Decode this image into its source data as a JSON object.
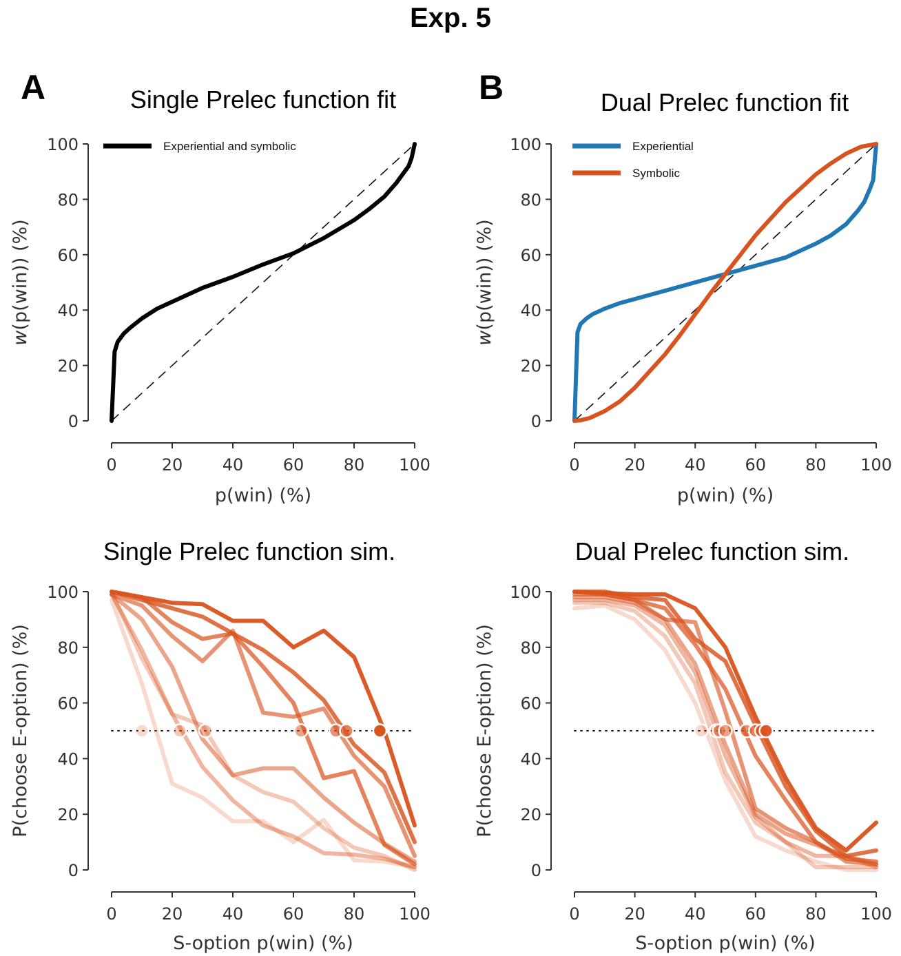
{
  "figure_title": "Exp. 5",
  "panels": {
    "A": {
      "letter": "A",
      "title": "Single Prelec function fit"
    },
    "B": {
      "letter": "B",
      "title": "Dual Prelec function fit"
    },
    "C": {
      "title": "Single Prelec function sim."
    },
    "D": {
      "title": "Dual Prelec function sim."
    }
  },
  "colors": {
    "black": "#000000",
    "blue": "#1f77b4",
    "orange": "#d9531e"
  },
  "chart_data": [
    {
      "id": "A",
      "type": "line",
      "title": "Single Prelec function fit",
      "xlabel": "p(win) (%)",
      "ylabel_italic": "w",
      "ylabel_rest": "(p(win)) (%)",
      "xlim": [
        0,
        100
      ],
      "ylim": [
        0,
        100
      ],
      "xticks": [
        0,
        20,
        40,
        60,
        80,
        100
      ],
      "yticks": [
        0,
        20,
        40,
        60,
        80,
        100
      ],
      "grid": false,
      "legend": "top-left",
      "identity_line": true,
      "series": [
        {
          "name": "Experiential and symbolic",
          "color": "#000000",
          "x": [
            0,
            1,
            2,
            4,
            6,
            10,
            15,
            20,
            30,
            40,
            50,
            60,
            70,
            80,
            85,
            90,
            94,
            96,
            98,
            99,
            100
          ],
          "y": [
            0,
            25,
            28.5,
            31.5,
            33.5,
            37,
            40.5,
            43,
            48,
            52,
            56.5,
            60.5,
            66,
            72.5,
            76.5,
            81,
            86,
            89,
            92,
            95,
            100
          ]
        }
      ]
    },
    {
      "id": "B",
      "type": "line",
      "title": "Dual Prelec function fit",
      "xlabel": "p(win) (%)",
      "ylabel_italic": "w",
      "ylabel_rest": "(p(win)) (%)",
      "xlim": [
        0,
        100
      ],
      "ylim": [
        0,
        100
      ],
      "xticks": [
        0,
        20,
        40,
        60,
        80,
        100
      ],
      "yticks": [
        0,
        20,
        40,
        60,
        80,
        100
      ],
      "grid": false,
      "legend": "top-left",
      "identity_line": true,
      "series": [
        {
          "name": "Experiential",
          "color": "#1f77b4",
          "x": [
            0,
            1,
            2,
            4,
            6,
            10,
            15,
            20,
            30,
            40,
            50,
            60,
            70,
            80,
            85,
            90,
            94,
            96,
            98,
            99,
            100
          ],
          "y": [
            0,
            32,
            35,
            37,
            38.5,
            40.5,
            42.5,
            44,
            47,
            50,
            53,
            56,
            59,
            64,
            67,
            71,
            76,
            79,
            84,
            87,
            100
          ]
        },
        {
          "name": "Symbolic",
          "color": "#d9531e",
          "x": [
            0,
            2,
            5,
            10,
            15,
            20,
            25,
            30,
            35,
            40,
            45,
            50,
            55,
            60,
            65,
            70,
            75,
            80,
            85,
            90,
            95,
            100
          ],
          "y": [
            0,
            0.2,
            1,
            3.5,
            7,
            12,
            18,
            24,
            31,
            38.5,
            46,
            53,
            60,
            67,
            73,
            79,
            84,
            89,
            93,
            96.5,
            99,
            100
          ]
        }
      ]
    },
    {
      "id": "C",
      "type": "line",
      "title": "Single Prelec function sim.",
      "xlabel": "S-option p(win) (%)",
      "ylabel": "P(choose E-option) (%)",
      "xlim": [
        0,
        100
      ],
      "ylim": [
        0,
        100
      ],
      "xticks": [
        0,
        20,
        40,
        60,
        80,
        100
      ],
      "yticks": [
        0,
        20,
        40,
        60,
        80,
        100
      ],
      "grid": false,
      "reference_line_y": 50,
      "x": [
        0,
        10,
        20,
        30,
        40,
        50,
        60,
        70,
        80,
        90,
        100
      ],
      "series": [
        {
          "opacity": 0.22,
          "indifference_x": 10,
          "values": [
            97,
            67,
            31,
            26,
            17.5,
            17.5,
            10,
            18,
            3.5,
            3,
            1
          ]
        },
        {
          "opacity": 0.32,
          "indifference_x": 22.5,
          "values": [
            100,
            76,
            56,
            52,
            34,
            28,
            24.5,
            15,
            8,
            5,
            0
          ]
        },
        {
          "opacity": 0.42,
          "indifference_x": 31,
          "values": [
            99,
            79,
            56,
            37,
            25,
            16,
            12,
            6,
            5.5,
            4,
            1
          ]
        },
        {
          "opacity": 0.52,
          "indifference_x": 62.5,
          "values": [
            99,
            90,
            73,
            47,
            34,
            36.5,
            36.5,
            26,
            17,
            9.5,
            3
          ]
        },
        {
          "opacity": 0.62,
          "indifference_x": 74,
          "values": [
            99,
            95,
            84,
            75,
            86,
            56.5,
            55,
            58,
            41,
            30,
            5
          ]
        },
        {
          "opacity": 0.72,
          "indifference_x": 77.5,
          "values": [
            100,
            98,
            89,
            83,
            85,
            73,
            60,
            33,
            35.5,
            9,
            2
          ]
        },
        {
          "opacity": 0.82,
          "indifference_x": 88.5,
          "values": [
            100,
            97,
            94,
            91,
            85,
            79,
            71,
            61,
            45,
            35,
            10
          ]
        },
        {
          "opacity": 0.95,
          "indifference_x": 88.5,
          "values": [
            100,
            98,
            96,
            95.5,
            89.5,
            89.5,
            80,
            86,
            76.5,
            50,
            16
          ]
        }
      ]
    },
    {
      "id": "D",
      "type": "line",
      "title": "Dual Prelec function sim.",
      "xlabel": "S-option p(win) (%)",
      "ylabel": "P(choose E-option) (%)",
      "xlim": [
        0,
        100
      ],
      "ylim": [
        0,
        100
      ],
      "xticks": [
        0,
        20,
        40,
        60,
        80,
        100
      ],
      "yticks": [
        0,
        20,
        40,
        60,
        80,
        100
      ],
      "grid": false,
      "reference_line_y": 50,
      "x": [
        0,
        10,
        20,
        30,
        40,
        50,
        60,
        70,
        80,
        90,
        100
      ],
      "series": [
        {
          "opacity": 0.22,
          "indifference_x": 42,
          "values": [
            94,
            95,
            90,
            79,
            60,
            32,
            12,
            7,
            3,
            0,
            0
          ]
        },
        {
          "opacity": 0.32,
          "indifference_x": 47,
          "values": [
            96,
            96,
            93,
            84,
            67,
            35,
            17,
            10,
            1,
            1,
            1
          ]
        },
        {
          "opacity": 0.42,
          "indifference_x": 48,
          "values": [
            97,
            97,
            95,
            88,
            71,
            41,
            19,
            10,
            5,
            5,
            1
          ]
        },
        {
          "opacity": 0.52,
          "indifference_x": 50,
          "values": [
            98,
            98,
            96,
            90,
            74,
            45,
            20,
            13,
            9,
            5,
            2
          ]
        },
        {
          "opacity": 0.62,
          "indifference_x": 57,
          "values": [
            99,
            99,
            97,
            90,
            89,
            57,
            22,
            15,
            10,
            3,
            2
          ]
        },
        {
          "opacity": 0.72,
          "indifference_x": 60,
          "values": [
            100,
            99,
            97,
            94,
            81,
            65,
            41,
            25,
            10,
            4,
            3
          ]
        },
        {
          "opacity": 0.82,
          "indifference_x": 62,
          "values": [
            100,
            100,
            98,
            97,
            83,
            75,
            52,
            30,
            14,
            5,
            7
          ]
        },
        {
          "opacity": 0.95,
          "indifference_x": 63.5,
          "values": [
            100,
            99.5,
            99,
            99,
            94,
            80,
            55,
            33,
            15,
            7,
            17
          ]
        }
      ]
    }
  ]
}
